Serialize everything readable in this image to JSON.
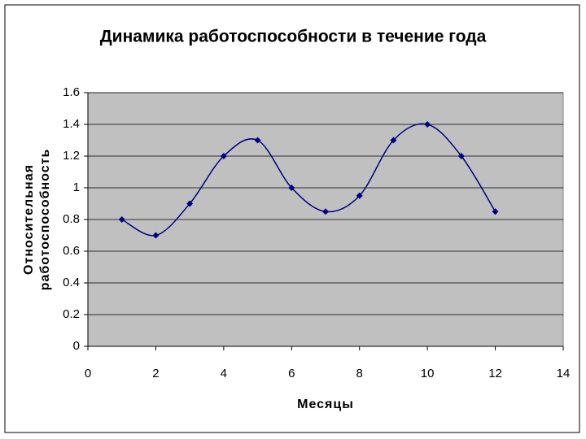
{
  "chart_data": {
    "type": "line",
    "title": "Динамика работоспособности в течение года",
    "x_label": "Месяцы",
    "y_label": [
      "Относительная",
      "работоспособность"
    ],
    "x": [
      1,
      2,
      3,
      4,
      5,
      6,
      7,
      8,
      9,
      10,
      11,
      12
    ],
    "series": [
      {
        "color": "#000080",
        "values": [
          0.8,
          0.7,
          0.9,
          1.2,
          1.3,
          1.0,
          0.85,
          0.95,
          1.3,
          1.4,
          1.2,
          0.85
        ]
      }
    ],
    "xlim": [
      0,
      14
    ],
    "xticks": [
      0,
      2,
      4,
      6,
      8,
      10,
      12,
      14
    ],
    "ylim": [
      0,
      1.6
    ],
    "yticks": [
      0,
      0.2,
      0.4,
      0.6,
      0.8,
      1,
      1.2,
      1.4,
      1.6
    ],
    "grid": true,
    "smooth": true,
    "plot_background": "#c0c0c0"
  }
}
